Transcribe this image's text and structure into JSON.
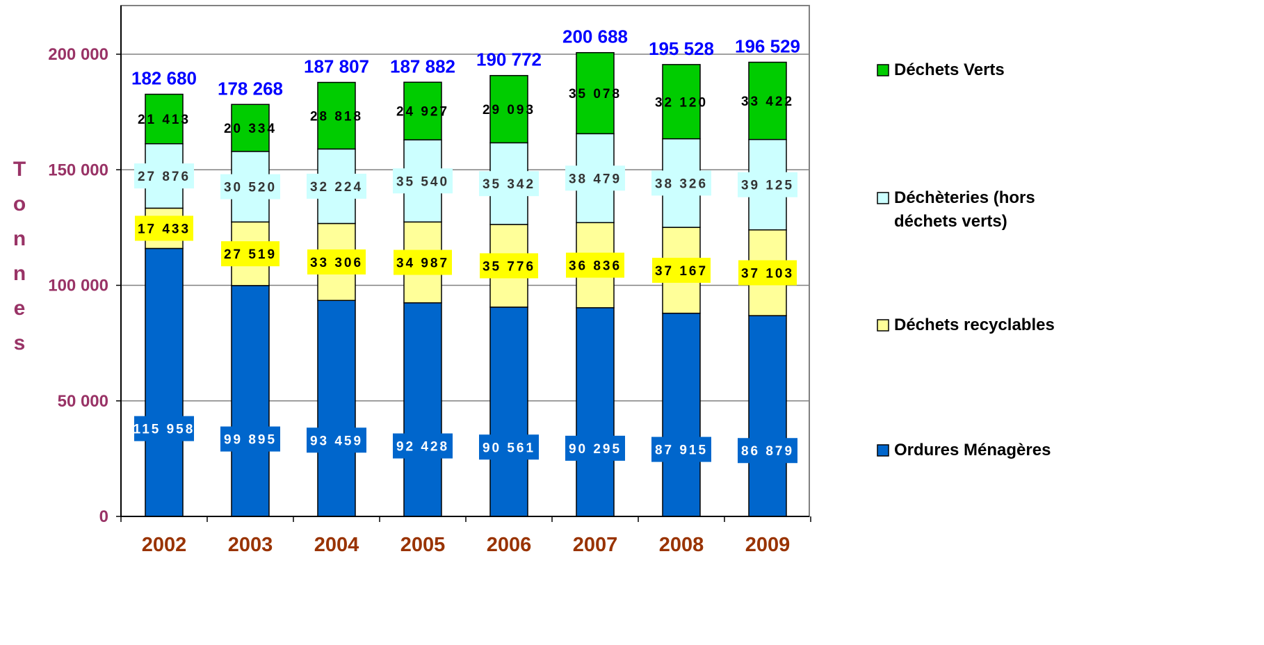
{
  "chart_data": {
    "type": "bar",
    "stacked": true,
    "ylabel": "Tonnes",
    "xlabel": "",
    "title": "",
    "ylim": [
      0,
      200000
    ],
    "yticks": [
      "0",
      "50 000",
      "100 000",
      "150 000",
      "200 000"
    ],
    "ytick_values": [
      0,
      50000,
      100000,
      150000,
      200000
    ],
    "grid": true,
    "legend_position": "right",
    "categories": [
      "2002",
      "2003",
      "2004",
      "2005",
      "2006",
      "2007",
      "2008",
      "2009"
    ],
    "series": [
      {
        "name": "Ordures Ménagères",
        "color": "#0066cc",
        "values": [
          115958,
          99895,
          93459,
          92428,
          90561,
          90295,
          87915,
          86879
        ],
        "labels": [
          "115 958",
          "99 895",
          "93 459",
          "92 428",
          "90 561",
          "90 295",
          "87 915",
          "86 879"
        ]
      },
      {
        "name": "Déchets recyclables",
        "color": "#ffff99",
        "label_bg": "#ffff00",
        "values": [
          17433,
          27519,
          33306,
          34987,
          35776,
          36836,
          37167,
          37103
        ],
        "labels": [
          "17 433",
          "27 519",
          "33 306",
          "34 987",
          "35 776",
          "36 836",
          "37 167",
          "37 103"
        ]
      },
      {
        "name": "Déchèteries (hors déchets verts)",
        "legend_lines": [
          "Déchèteries (hors",
          "déchets verts)"
        ],
        "color": "#ccffff",
        "values": [
          27876,
          30520,
          32224,
          35540,
          35342,
          38479,
          38326,
          39125
        ],
        "labels": [
          "27 876",
          "30 520",
          "32 224",
          "35 540",
          "35 342",
          "38 479",
          "38 326",
          "39 125"
        ]
      },
      {
        "name": "Déchets Verts",
        "color": "#00cc00",
        "values": [
          21413,
          20334,
          28818,
          24927,
          29093,
          35078,
          32120,
          33422
        ],
        "labels": [
          "21 413",
          "20 334",
          "28 818",
          "24 927",
          "29 093",
          "35 078",
          "32 120",
          "33 422"
        ]
      }
    ],
    "totals": [
      182680,
      178268,
      187807,
      187882,
      190772,
      200688,
      195528,
      196529
    ],
    "total_labels": [
      "182 680",
      "178 268",
      "187 807",
      "187 882",
      "190 772",
      "200 688",
      "195 528",
      "196 529"
    ],
    "colors": {
      "tick_label": "#993366",
      "year_label": "#993300",
      "total_label": "#0000ff",
      "gridline": "#808080",
      "axis": "#000000"
    }
  }
}
